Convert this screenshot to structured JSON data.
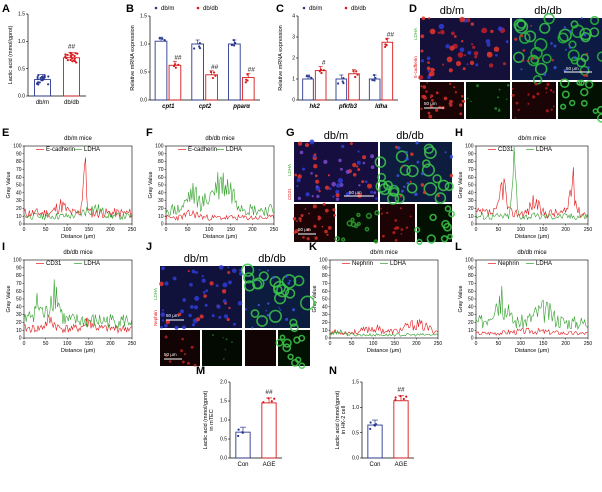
{
  "panels": {
    "A": "A",
    "B": "B",
    "C": "C",
    "D": "D",
    "E": "E",
    "F": "F",
    "G": "G",
    "H": "H",
    "I": "I",
    "J": "J",
    "K": "K",
    "L": "L",
    "M": "M",
    "N": "N"
  },
  "colors": {
    "dbm": "#2b3990",
    "dbdb": "#d7191c",
    "red": "#e31a1c",
    "green": "#33a02c",
    "black": "#000000"
  },
  "images": {
    "D": {
      "left_title": "db/m",
      "right_title": "db/db",
      "scale_top": "50 μm",
      "scale_bottom": "50 μm",
      "stain_left": "E-cadherin",
      "stain_right": "LDHA"
    },
    "G": {
      "left_title": "db/m",
      "right_title": "db/db",
      "scale_top": "50 μm",
      "scale_bottom": "50 μm",
      "stain_left": "CD31",
      "stain_right": "LDHA"
    },
    "J": {
      "left_title": "db/m",
      "right_title": "db/db",
      "scale_top": "50 μm",
      "scale_bottom": "50 μm",
      "stain_left": "Nephrin",
      "stain_right": "LDHA"
    }
  },
  "chart_data": [
    {
      "id": "A",
      "type": "bar",
      "categories": [
        "db/m",
        "db/db"
      ],
      "values": [
        0.3,
        0.7
      ],
      "ylabel": "Lactic acid (mmol/gprot)",
      "ylim": [
        0,
        1.5
      ],
      "yticks": [
        "0.0",
        "0.5",
        "1.0",
        "1.5"
      ],
      "significance": [
        "",
        "##"
      ]
    },
    {
      "id": "B",
      "type": "bar",
      "categories": [
        "cpt1",
        "cpt2",
        "pparα"
      ],
      "series": [
        {
          "name": "db/m",
          "values": [
            1.05,
            1.0,
            1.0
          ]
        },
        {
          "name": "db/db",
          "values": [
            0.62,
            0.45,
            0.4
          ]
        }
      ],
      "ylabel": "Relative mRNA expression",
      "ylim": [
        0,
        1.5
      ],
      "yticks": [
        "0.0",
        "0.5",
        "1.0",
        "1.5"
      ],
      "significance": [
        "##",
        "##",
        "##"
      ]
    },
    {
      "id": "C",
      "type": "bar",
      "categories": [
        "hk2",
        "pfkfb3",
        "ldha"
      ],
      "series": [
        {
          "name": "db/m",
          "values": [
            1.0,
            1.0,
            1.0
          ]
        },
        {
          "name": "db/db",
          "values": [
            1.4,
            1.25,
            2.75
          ]
        }
      ],
      "ylabel": "Relative mRNA expression",
      "ylim": [
        0,
        4
      ],
      "yticks": [
        "0",
        "1",
        "2",
        "3",
        "4"
      ],
      "significance": [
        "#",
        "",
        "##"
      ]
    },
    {
      "id": "E",
      "type": "line",
      "title": "db/m mice",
      "series": [
        {
          "name": "E-cadherin"
        },
        {
          "name": "LDHA"
        }
      ],
      "xlabel": "Distance (μm)",
      "ylabel": "Gray Value",
      "xlim": [
        0,
        250
      ],
      "ylim": [
        0,
        100
      ],
      "xticks": [
        "0",
        "50",
        "100",
        "150",
        "200",
        "250"
      ],
      "yticks": [
        "0",
        "10",
        "20",
        "30",
        "40",
        "50",
        "60",
        "70",
        "80",
        "90",
        "100"
      ]
    },
    {
      "id": "F",
      "type": "line",
      "title": "db/db mice",
      "series": [
        {
          "name": "E-cadherin"
        },
        {
          "name": "LDHA"
        }
      ],
      "xlabel": "Distance (μm)",
      "ylabel": "Gray Value",
      "xlim": [
        0,
        250
      ],
      "ylim": [
        0,
        100
      ],
      "xticks": [
        "0",
        "50",
        "100",
        "150",
        "200",
        "250"
      ],
      "yticks": [
        "0",
        "10",
        "20",
        "30",
        "40",
        "50",
        "60",
        "70",
        "80",
        "90",
        "100"
      ]
    },
    {
      "id": "H",
      "type": "line",
      "title": "db/m mice",
      "series": [
        {
          "name": "CD31"
        },
        {
          "name": "LDHA"
        }
      ],
      "xlabel": "Distance (μm)",
      "ylabel": "Gray Value",
      "xlim": [
        0,
        250
      ],
      "ylim": [
        0,
        100
      ],
      "xticks": [
        "0",
        "50",
        "100",
        "150",
        "200",
        "250"
      ],
      "yticks": [
        "0",
        "10",
        "20",
        "30",
        "40",
        "50",
        "60",
        "70",
        "80",
        "90",
        "100"
      ]
    },
    {
      "id": "I",
      "type": "line",
      "title": "db/db mice",
      "series": [
        {
          "name": "CD31"
        },
        {
          "name": "LDHA"
        }
      ],
      "xlabel": "Distance (μm)",
      "ylabel": "Gray Value",
      "xlim": [
        0,
        250
      ],
      "ylim": [
        0,
        100
      ],
      "xticks": [
        "0",
        "50",
        "100",
        "150",
        "200",
        "250"
      ],
      "yticks": [
        "0",
        "10",
        "20",
        "30",
        "40",
        "50",
        "60",
        "70",
        "80",
        "90",
        "100"
      ]
    },
    {
      "id": "K",
      "type": "line",
      "title": "db/m mice",
      "series": [
        {
          "name": "Nephrin"
        },
        {
          "name": "LDHA"
        }
      ],
      "xlabel": "Distance (μm)",
      "ylabel": "Gray Value",
      "xlim": [
        0,
        250
      ],
      "ylim": [
        0,
        100
      ],
      "xticks": [
        "0",
        "50",
        "100",
        "150",
        "200",
        "250"
      ],
      "yticks": [
        "0",
        "10",
        "20",
        "30",
        "40",
        "50",
        "60",
        "70",
        "80",
        "90",
        "100"
      ]
    },
    {
      "id": "L",
      "type": "line",
      "title": "db/db mice",
      "series": [
        {
          "name": "Nephrin"
        },
        {
          "name": "LDHA"
        }
      ],
      "xlabel": "Distance (μm)",
      "ylabel": "Gray Value",
      "xlim": [
        0,
        250
      ],
      "ylim": [
        0,
        100
      ],
      "xticks": [
        "0",
        "50",
        "100",
        "150",
        "200",
        "250"
      ],
      "yticks": [
        "0",
        "10",
        "20",
        "30",
        "40",
        "50",
        "60",
        "70",
        "80",
        "90",
        "100"
      ]
    },
    {
      "id": "M",
      "type": "bar",
      "categories": [
        "Con",
        "AGE"
      ],
      "values": [
        0.68,
        1.45
      ],
      "ylabel": "Lactic acid (mmol/gprot) in mTEC",
      "ylim": [
        0,
        2.0
      ],
      "yticks": [
        "0.0",
        "0.5",
        "1.0",
        "1.5",
        "2.0"
      ],
      "significance": [
        "",
        "##"
      ]
    },
    {
      "id": "N",
      "type": "bar",
      "categories": [
        "Con",
        "AGE"
      ],
      "values": [
        0.65,
        1.13
      ],
      "ylabel": "Lactic acid (mmol/gprot) in HK-2 cell",
      "ylim": [
        0,
        1.5
      ],
      "yticks": [
        "0.0",
        "0.5",
        "1.0",
        "1.5"
      ],
      "significance": [
        "",
        "##"
      ]
    }
  ]
}
